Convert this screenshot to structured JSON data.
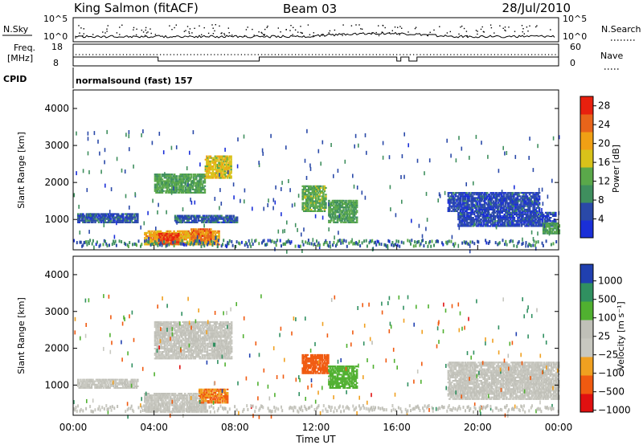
{
  "header": {
    "station": "King Salmon (fitACF)",
    "beam": "Beam 03",
    "date": "28/Jul/2010"
  },
  "noise_panel": {
    "left_label": "N.Sky",
    "right_label": "N.Search",
    "left_ticks": [
      "10^5",
      "10^0"
    ],
    "right_ticks": [
      "10^5",
      "10^0"
    ]
  },
  "freq_panel": {
    "left_label_1": "Freq.",
    "left_label_2": "[MHz]",
    "left_ticks": [
      "18",
      "8"
    ],
    "right_label": "Nave",
    "right_ticks": [
      "60",
      "0"
    ]
  },
  "cpid": {
    "label": "CPID",
    "value": "normalsound (fast) 157"
  },
  "colors": {
    "power": [
      "#1a2fd8",
      "#2a49a8",
      "#3f8f5e",
      "#5aa84a",
      "#d8c21a",
      "#f0a014",
      "#e8641a",
      "#e8200e"
    ],
    "velocity": [
      "#e01010",
      "#f05a10",
      "#f0a020",
      "#c8c8c0",
      "#c0c0b8",
      "#50b030",
      "#309060",
      "#2040b0"
    ]
  },
  "chart_data": [
    {
      "type": "heatmap",
      "title": "",
      "xlabel": "",
      "ylabel": "Slant Range [km]",
      "xlim": [
        "00:00",
        "00:00"
      ],
      "ylim": [
        180,
        4500
      ],
      "y_ticks": [
        "1000",
        "2000",
        "3000",
        "4000"
      ],
      "colorbar": {
        "label": "Power [dB]",
        "ticks": [
          "4",
          "8",
          "12",
          "16",
          "20",
          "24",
          "28"
        ],
        "range": [
          0,
          30
        ]
      },
      "features": [
        {
          "t_start": 0.2,
          "t_end": 3.2,
          "r_start": 900,
          "r_end": 1150,
          "value": 6
        },
        {
          "t_start": 3.5,
          "t_end": 7.2,
          "r_start": 300,
          "r_end": 700,
          "value": 20
        },
        {
          "t_start": 4.2,
          "t_end": 5.2,
          "r_start": 320,
          "r_end": 600,
          "value": 27
        },
        {
          "t_start": 5.8,
          "t_end": 6.8,
          "r_start": 400,
          "r_end": 750,
          "value": 24
        },
        {
          "t_start": 5.0,
          "t_end": 8.1,
          "r_start": 900,
          "r_end": 1100,
          "value": 6
        },
        {
          "t_start": 4.0,
          "t_end": 6.5,
          "r_start": 1700,
          "r_end": 2200,
          "value": 12
        },
        {
          "t_start": 6.5,
          "t_end": 7.8,
          "r_start": 2100,
          "r_end": 2700,
          "value": 17
        },
        {
          "t_start": 11.3,
          "t_end": 12.5,
          "r_start": 1200,
          "r_end": 1900,
          "value": 13
        },
        {
          "t_start": 12.6,
          "t_end": 14.0,
          "r_start": 900,
          "r_end": 1500,
          "value": 12
        },
        {
          "t_start": 19.0,
          "t_end": 23.8,
          "r_start": 800,
          "r_end": 1200,
          "value": 5
        },
        {
          "t_start": 18.5,
          "t_end": 23.0,
          "r_start": 1200,
          "r_end": 1700,
          "value": 5
        },
        {
          "t_start": 23.2,
          "t_end": 24.0,
          "r_start": 600,
          "r_end": 900,
          "value": 11
        }
      ]
    },
    {
      "type": "heatmap",
      "title": "",
      "xlabel": "Time UT",
      "ylabel": "Slant Range [km]",
      "xlim": [
        "00:00",
        "00:00"
      ],
      "ylim": [
        180,
        4500
      ],
      "x_ticks": [
        "00:00",
        "04:00",
        "08:00",
        "12:00",
        "16:00",
        "20:00",
        "00:00"
      ],
      "y_ticks": [
        "1000",
        "2000",
        "3000",
        "4000"
      ],
      "colorbar": {
        "label": "Velocity [m s⁻¹]",
        "ticks": [
          "1000",
          "500",
          "100",
          "25",
          "−25",
          "−100",
          "−500",
          "−1000"
        ]
      },
      "features": [
        {
          "t_start": 0.2,
          "t_end": 3.2,
          "r_start": 900,
          "r_end": 1150,
          "value": 0
        },
        {
          "t_start": 3.5,
          "t_end": 6.5,
          "r_start": 250,
          "r_end": 750,
          "value": 0
        },
        {
          "t_start": 6.2,
          "t_end": 7.6,
          "r_start": 500,
          "r_end": 900,
          "value": -300
        },
        {
          "t_start": 4.0,
          "t_end": 7.8,
          "r_start": 1700,
          "r_end": 2700,
          "value": 0
        },
        {
          "t_start": 11.3,
          "t_end": 12.6,
          "r_start": 1300,
          "r_end": 1800,
          "value": -400
        },
        {
          "t_start": 12.6,
          "t_end": 14.0,
          "r_start": 900,
          "r_end": 1500,
          "value": 150
        },
        {
          "t_start": 18.5,
          "t_end": 24.0,
          "r_start": 600,
          "r_end": 1600,
          "value": 0
        }
      ]
    }
  ]
}
